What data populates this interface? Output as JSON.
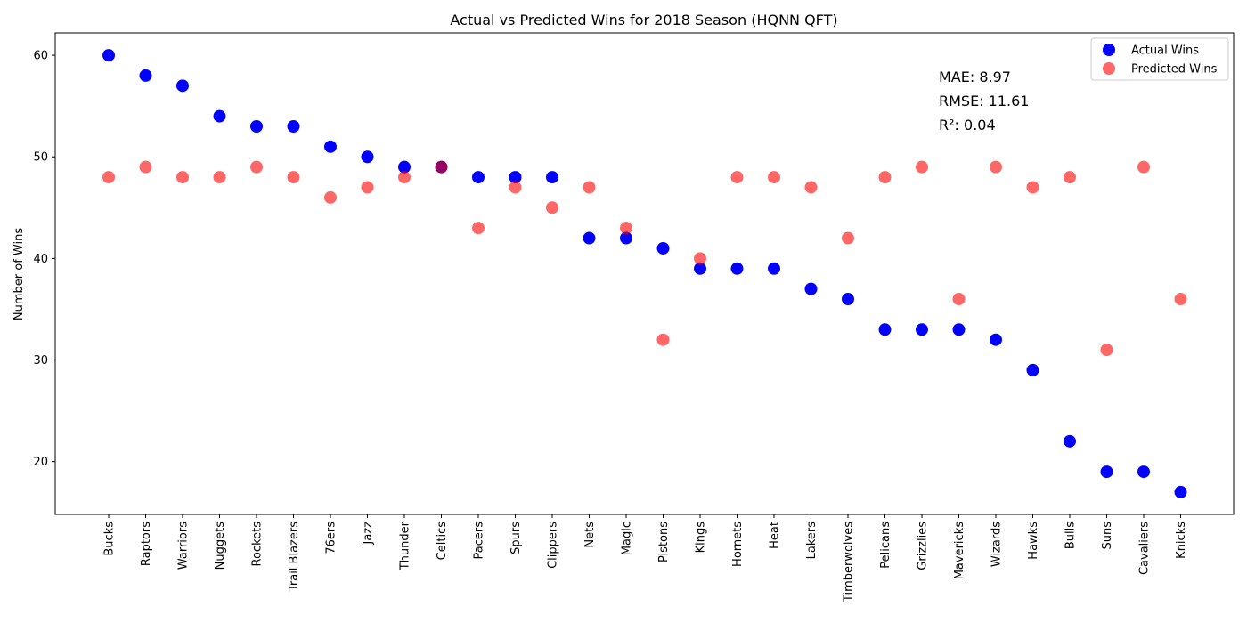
{
  "chart_data": {
    "type": "scatter",
    "title": "Actual vs Predicted Wins for 2018 Season (HQNN QFT)",
    "xlabel": "",
    "ylabel": "Number of Wins",
    "ylim": [
      14.8,
      62.2
    ],
    "yticks": [
      20,
      30,
      40,
      50,
      60
    ],
    "grid": false,
    "legend_position": "top-right",
    "categories": [
      "Bucks",
      "Raptors",
      "Warriors",
      "Nuggets",
      "Rockets",
      "Trail Blazers",
      "76ers",
      "Jazz",
      "Thunder",
      "Celtics",
      "Pacers",
      "Spurs",
      "Clippers",
      "Nets",
      "Magic",
      "Pistons",
      "Kings",
      "Hornets",
      "Heat",
      "Lakers",
      "Timberwolves",
      "Pelicans",
      "Grizzlies",
      "Mavericks",
      "Wizards",
      "Hawks",
      "Bulls",
      "Suns",
      "Cavaliers",
      "Knicks"
    ],
    "series": [
      {
        "name": "Actual Wins",
        "color": "#0000ff",
        "opacity": 1.0,
        "values": [
          60,
          58,
          57,
          54,
          53,
          53,
          51,
          50,
          49,
          49,
          48,
          48,
          48,
          42,
          42,
          41,
          39,
          39,
          39,
          37,
          36,
          33,
          33,
          33,
          32,
          29,
          22,
          19,
          19,
          17
        ]
      },
      {
        "name": "Predicted Wins",
        "color": "#ff0000",
        "opacity": 0.6,
        "values": [
          48,
          49,
          48,
          48,
          49,
          48,
          46,
          47,
          48,
          49,
          43,
          47,
          45,
          47,
          43,
          32,
          40,
          48,
          48,
          47,
          42,
          48,
          49,
          36,
          49,
          47,
          48,
          31,
          49,
          36
        ]
      }
    ],
    "annotations": [
      "MAE: 8.97",
      "RMSE: 11.61",
      "R²: 0.04"
    ]
  }
}
